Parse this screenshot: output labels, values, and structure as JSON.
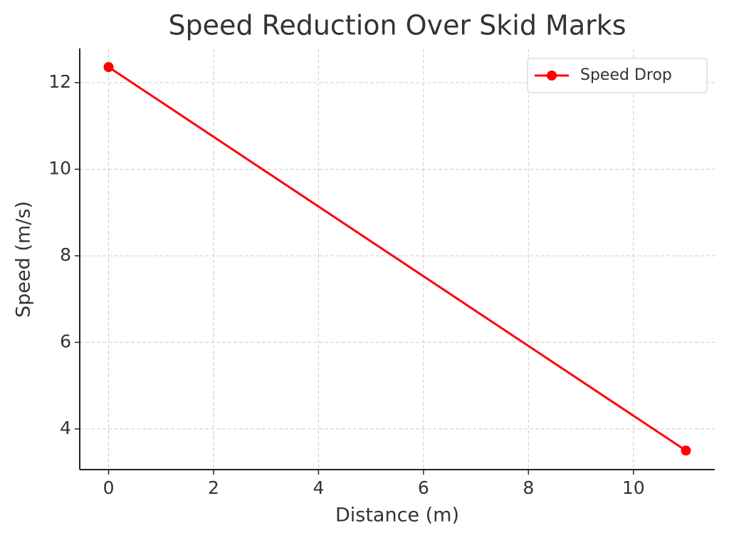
{
  "chart_data": {
    "type": "line",
    "title": "Speed Reduction Over Skid Marks",
    "xlabel": "Distance (m)",
    "ylabel": "Speed (m/s)",
    "x": [
      0,
      11
    ],
    "series": [
      {
        "name": "Speed Drop",
        "color": "#ff0000",
        "values": [
          12.36,
          3.5
        ]
      }
    ],
    "xlim": [
      -0.55,
      11.55
    ],
    "xticks": [
      0,
      2,
      4,
      6,
      8,
      10
    ],
    "ylim": [
      3.06,
      12.79
    ],
    "yticks": [
      4,
      6,
      8,
      10,
      12
    ],
    "grid": true,
    "legend": "upper right"
  }
}
